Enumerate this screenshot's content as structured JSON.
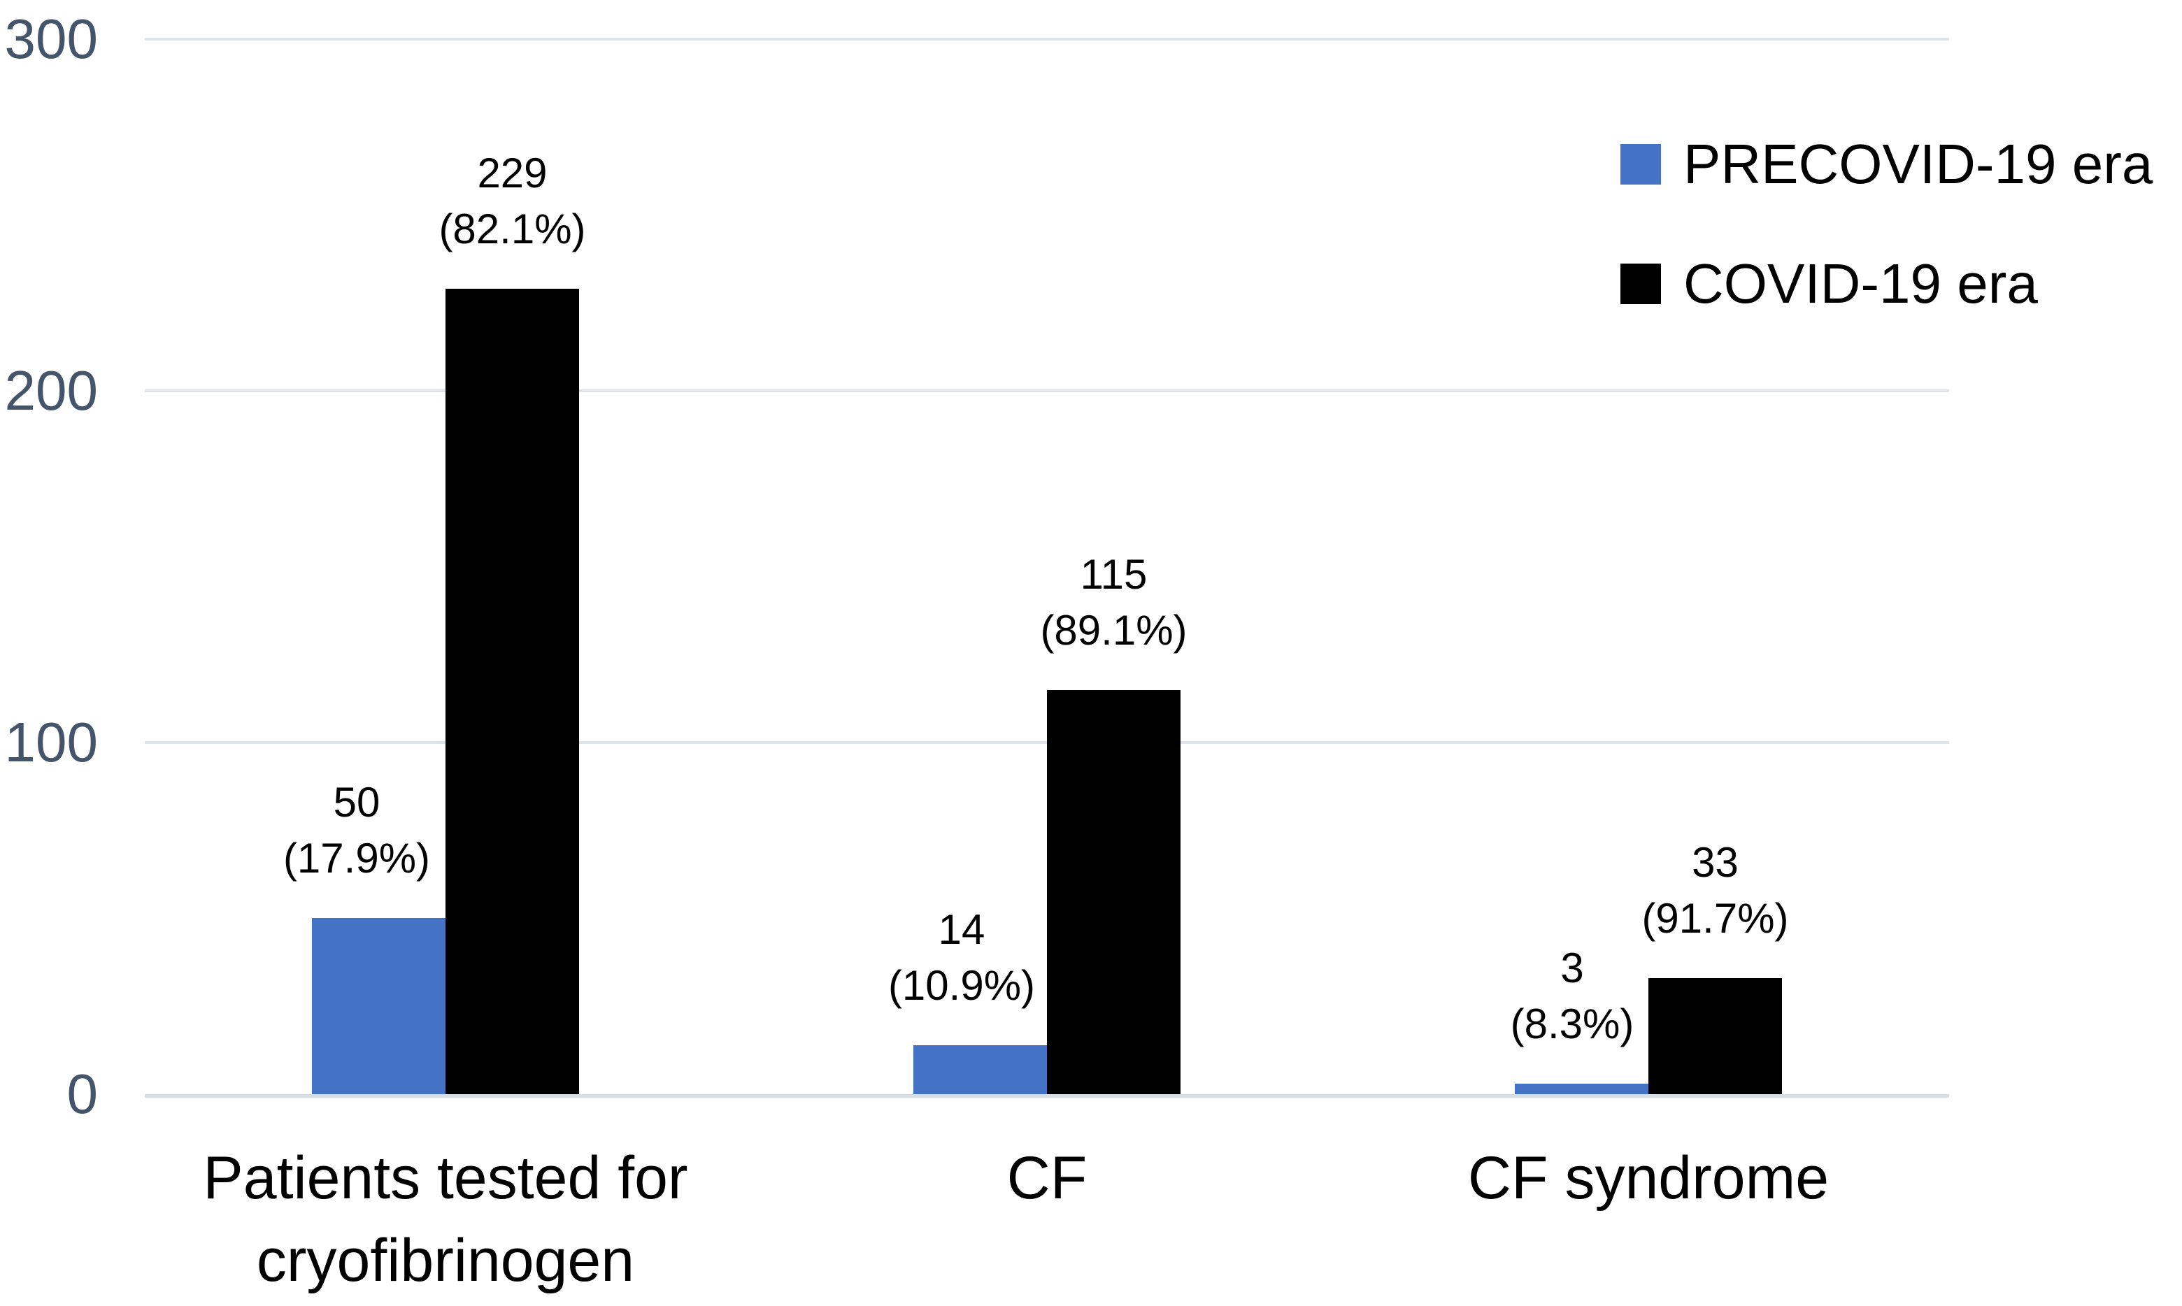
{
  "chart_data": {
    "type": "bar",
    "title": "",
    "xlabel": "",
    "ylabel": "",
    "categories": [
      "Patients tested for cryofibrinogen",
      "CF",
      "CF syndrome"
    ],
    "category_display_lines": [
      [
        "Patients tested for",
        "cryofibrinogen"
      ],
      [
        "CF"
      ],
      [
        "CF syndrome"
      ]
    ],
    "series": [
      {
        "name": "PRECOVID-19 era",
        "color": "#4472C4",
        "values": [
          50,
          14,
          3
        ],
        "data_labels": [
          [
            "50",
            "(17.9%)"
          ],
          [
            "14",
            "(10.9%)"
          ],
          [
            "3",
            "(8.3%)"
          ]
        ]
      },
      {
        "name": "COVID-19 era",
        "color": "#000000",
        "values": [
          229,
          115,
          33
        ],
        "data_labels": [
          [
            "229",
            "(82.1%)"
          ],
          [
            "115",
            "(89.1%)"
          ],
          [
            "33",
            "(91.7%)"
          ]
        ]
      }
    ],
    "y_axis": {
      "min": 0,
      "max": 300,
      "ticks": [
        0,
        100,
        200,
        300
      ],
      "tick_labels": [
        "0",
        "100",
        "200",
        "300"
      ],
      "label_color": "#44546A"
    },
    "grid": true,
    "gridline_color": "#DEE2EA",
    "axisline_color": "#D8DEE8",
    "background": "#FFFFFF",
    "legend_position": "top-right",
    "data_label_color": "#000000"
  }
}
